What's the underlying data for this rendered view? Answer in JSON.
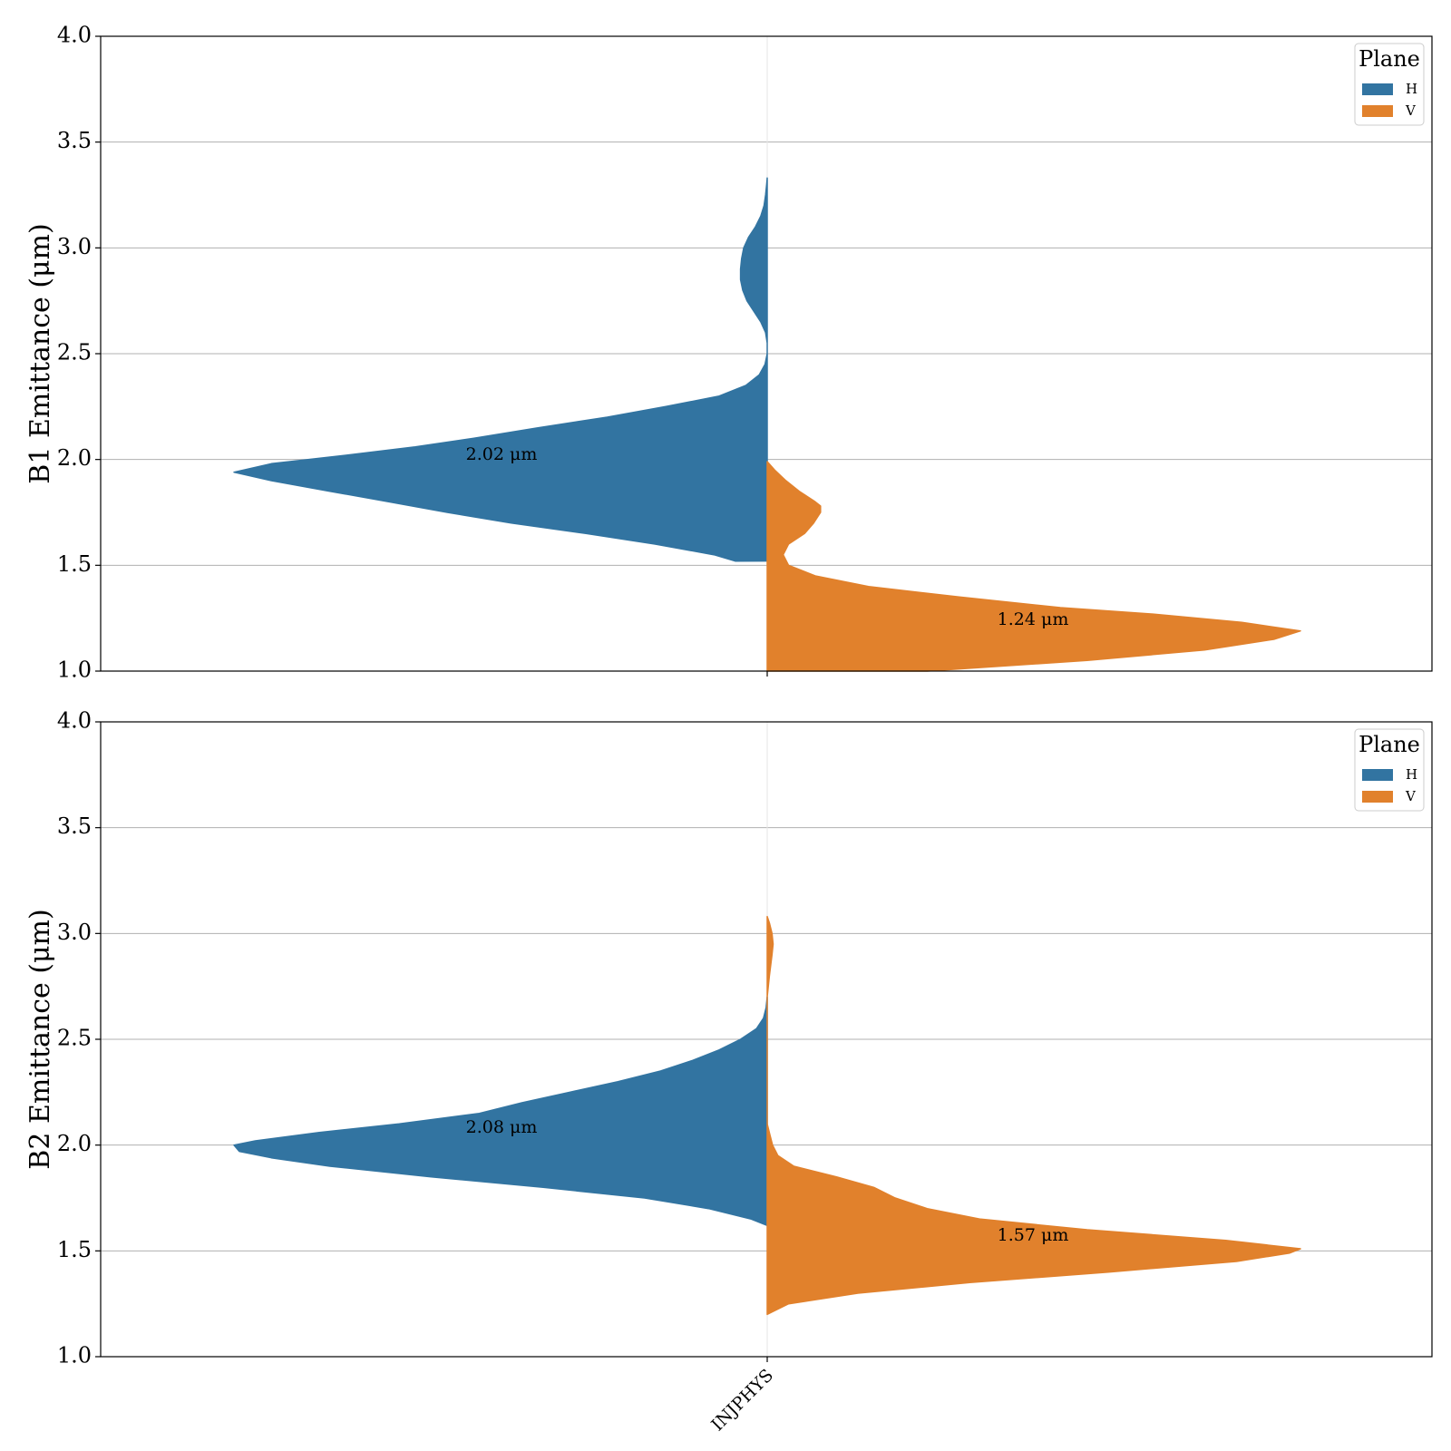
{
  "chart_data": [
    {
      "type": "violin",
      "ylabel": "B1 Emittance (μm)",
      "ylim": [
        1.0,
        4.0
      ],
      "yticks": [
        "1.0",
        "1.5",
        "2.0",
        "2.5",
        "3.0",
        "3.5",
        "4.0"
      ],
      "grid": true,
      "category": "INJPHYS",
      "legend": {
        "title": "Plane",
        "position": "top-right"
      },
      "series": [
        {
          "name": "H",
          "color": "#3274a1",
          "side": "left",
          "annotation": "2.02 μm",
          "annotation_y": 2.02,
          "density": [
            [
              1.52,
              0.06
            ],
            [
              1.55,
              0.1
            ],
            [
              1.6,
              0.21
            ],
            [
              1.65,
              0.34
            ],
            [
              1.7,
              0.48
            ],
            [
              1.75,
              0.6
            ],
            [
              1.8,
              0.71
            ],
            [
              1.85,
              0.82
            ],
            [
              1.9,
              0.93
            ],
            [
              1.94,
              1.0
            ],
            [
              1.98,
              0.93
            ],
            [
              2.02,
              0.79
            ],
            [
              2.06,
              0.66
            ],
            [
              2.1,
              0.55
            ],
            [
              2.15,
              0.43
            ],
            [
              2.2,
              0.3
            ],
            [
              2.25,
              0.19
            ],
            [
              2.3,
              0.09
            ],
            [
              2.35,
              0.04
            ],
            [
              2.4,
              0.015
            ],
            [
              2.45,
              0.004
            ],
            [
              2.5,
              0.0
            ],
            [
              2.55,
              0.0
            ],
            [
              2.6,
              0.003
            ],
            [
              2.65,
              0.012
            ],
            [
              2.7,
              0.025
            ],
            [
              2.75,
              0.038
            ],
            [
              2.8,
              0.046
            ],
            [
              2.85,
              0.05
            ],
            [
              2.9,
              0.05
            ],
            [
              2.95,
              0.048
            ],
            [
              3.0,
              0.044
            ],
            [
              3.05,
              0.035
            ],
            [
              3.1,
              0.022
            ],
            [
              3.15,
              0.012
            ],
            [
              3.2,
              0.006
            ],
            [
              3.25,
              0.003
            ],
            [
              3.3,
              0.001
            ],
            [
              3.33,
              0.0
            ]
          ]
        },
        {
          "name": "V",
          "color": "#e1812c",
          "side": "right",
          "annotation": "1.24 μm",
          "annotation_y": 1.24,
          "density": [
            [
              1.0,
              0.3
            ],
            [
              1.05,
              0.6
            ],
            [
              1.1,
              0.82
            ],
            [
              1.15,
              0.95
            ],
            [
              1.19,
              1.0
            ],
            [
              1.23,
              0.89
            ],
            [
              1.27,
              0.72
            ],
            [
              1.3,
              0.55
            ],
            [
              1.35,
              0.36
            ],
            [
              1.4,
              0.19
            ],
            [
              1.45,
              0.09
            ],
            [
              1.5,
              0.04
            ],
            [
              1.55,
              0.03
            ],
            [
              1.6,
              0.04
            ],
            [
              1.65,
              0.07
            ],
            [
              1.7,
              0.087
            ],
            [
              1.75,
              0.1
            ],
            [
              1.78,
              0.1
            ],
            [
              1.8,
              0.09
            ],
            [
              1.85,
              0.06
            ],
            [
              1.9,
              0.035
            ],
            [
              1.95,
              0.014
            ],
            [
              1.99,
              0.0
            ]
          ]
        }
      ]
    },
    {
      "type": "violin",
      "ylabel": "B2 Emittance (μm)",
      "ylim": [
        1.0,
        4.0
      ],
      "yticks": [
        "1.0",
        "1.5",
        "2.0",
        "2.5",
        "3.0",
        "3.5",
        "4.0"
      ],
      "grid": true,
      "category": "INJPHYS",
      "legend": {
        "title": "Plane",
        "position": "top-right"
      },
      "series": [
        {
          "name": "H",
          "color": "#3274a1",
          "side": "left",
          "annotation": "2.08 μm",
          "annotation_y": 2.08,
          "density": [
            [
              1.62,
              0.0
            ],
            [
              1.65,
              0.03
            ],
            [
              1.7,
              0.11
            ],
            [
              1.75,
              0.23
            ],
            [
              1.8,
              0.42
            ],
            [
              1.85,
              0.63
            ],
            [
              1.9,
              0.82
            ],
            [
              1.94,
              0.93
            ],
            [
              1.97,
              0.99
            ],
            [
              2.0,
              1.0
            ],
            [
              2.02,
              0.96
            ],
            [
              2.06,
              0.84
            ],
            [
              2.1,
              0.69
            ],
            [
              2.15,
              0.54
            ],
            [
              2.2,
              0.46
            ],
            [
              2.25,
              0.37
            ],
            [
              2.3,
              0.28
            ],
            [
              2.35,
              0.2
            ],
            [
              2.4,
              0.14
            ],
            [
              2.45,
              0.09
            ],
            [
              2.5,
              0.05
            ],
            [
              2.55,
              0.02
            ],
            [
              2.6,
              0.007
            ],
            [
              2.65,
              0.002
            ],
            [
              2.7,
              0.0
            ]
          ]
        },
        {
          "name": "V",
          "color": "#e1812c",
          "side": "right",
          "annotation": "1.57 μm",
          "annotation_y": 1.57,
          "density": [
            [
              1.2,
              0.0
            ],
            [
              1.25,
              0.04
            ],
            [
              1.3,
              0.17
            ],
            [
              1.35,
              0.38
            ],
            [
              1.4,
              0.64
            ],
            [
              1.45,
              0.88
            ],
            [
              1.49,
              0.98
            ],
            [
              1.51,
              1.0
            ],
            [
              1.55,
              0.86
            ],
            [
              1.6,
              0.6
            ],
            [
              1.65,
              0.4
            ],
            [
              1.7,
              0.3
            ],
            [
              1.75,
              0.24
            ],
            [
              1.8,
              0.2
            ],
            [
              1.85,
              0.13
            ],
            [
              1.9,
              0.05
            ],
            [
              1.95,
              0.02
            ],
            [
              2.0,
              0.01
            ],
            [
              2.05,
              0.005
            ],
            [
              2.1,
              0.0
            ],
            [
              2.15,
              0.0
            ],
            [
              2.7,
              0.0
            ],
            [
              2.8,
              0.004
            ],
            [
              2.9,
              0.009
            ],
            [
              2.95,
              0.011
            ],
            [
              3.0,
              0.009
            ],
            [
              3.05,
              0.004
            ],
            [
              3.08,
              0.0
            ]
          ]
        }
      ]
    }
  ]
}
